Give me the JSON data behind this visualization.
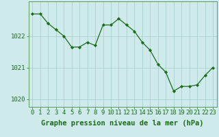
{
  "x": [
    0,
    1,
    2,
    3,
    4,
    5,
    6,
    7,
    8,
    9,
    10,
    11,
    12,
    13,
    14,
    15,
    16,
    17,
    18,
    19,
    20,
    21,
    22,
    23
  ],
  "y": [
    1022.7,
    1022.7,
    1022.4,
    1022.2,
    1022.0,
    1021.65,
    1021.65,
    1021.8,
    1021.7,
    1022.35,
    1022.35,
    1022.55,
    1022.35,
    1022.15,
    1021.8,
    1021.55,
    1021.1,
    1020.85,
    1020.25,
    1020.4,
    1020.4,
    1020.45,
    1020.75,
    1021.0
  ],
  "xlabel": "Graphe pression niveau de la mer (hPa)",
  "xlim": [
    -0.5,
    23.5
  ],
  "ylim": [
    1019.75,
    1023.1
  ],
  "yticks": [
    1020,
    1021,
    1022
  ],
  "xticks": [
    0,
    1,
    2,
    3,
    4,
    5,
    6,
    7,
    8,
    9,
    10,
    11,
    12,
    13,
    14,
    15,
    16,
    17,
    18,
    19,
    20,
    21,
    22,
    23
  ],
  "line_color": "#1a6b1a",
  "marker": "D",
  "marker_size": 2.2,
  "bg_color": "#ceeaea",
  "grid_color": "#aacece",
  "xlabel_color": "#1a6b1a",
  "xlabel_fontsize": 7.5,
  "tick_fontsize": 6.5,
  "border_color": "#5a9a5a"
}
